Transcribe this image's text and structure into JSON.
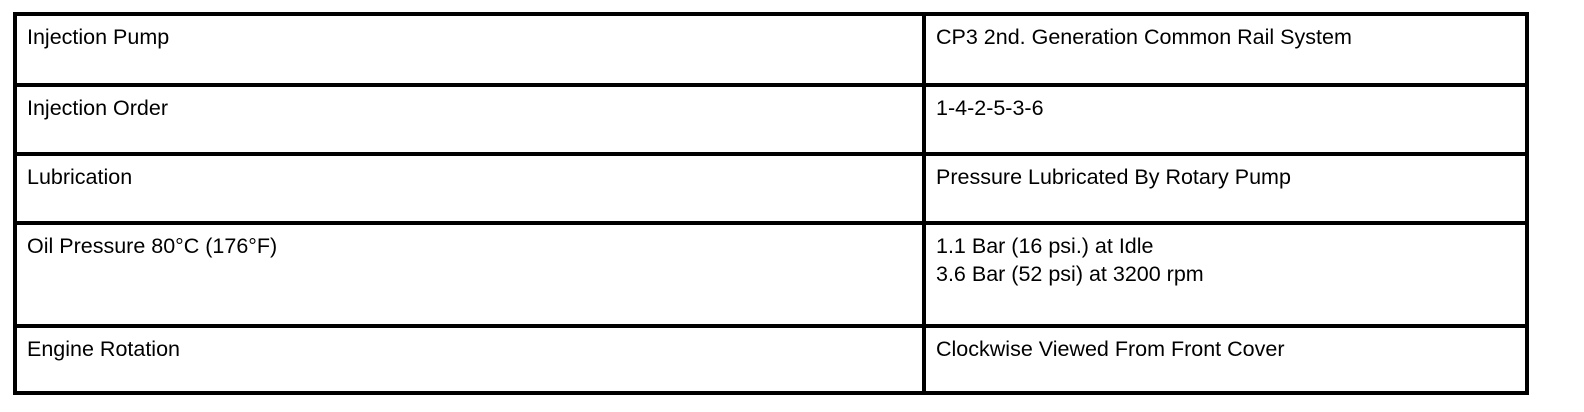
{
  "table": {
    "rows": [
      {
        "label": "Injection Pump",
        "value": "CP3 2nd. Generation Common Rail System"
      },
      {
        "label": "Injection Order",
        "value": "1-4-2-5-3-6"
      },
      {
        "label": "Lubrication",
        "value": "Pressure Lubricated By Rotary Pump"
      },
      {
        "label": "Oil Pressure 80°C (176°F)",
        "value": "1.1 Bar (16 psi.) at Idle\n3.6 Bar (52 psi) at 3200 rpm"
      },
      {
        "label": "Engine Rotation",
        "value": "Clockwise Viewed From Front Cover"
      }
    ]
  }
}
